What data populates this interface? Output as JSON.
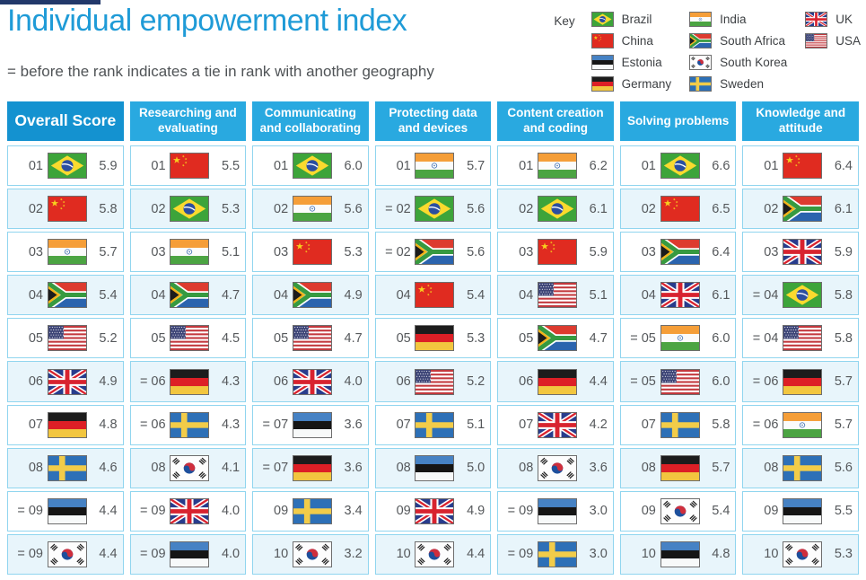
{
  "title": "Individual empowerment index",
  "subtitle": "= before the rank indicates a tie in rank with another geography",
  "colors": {
    "title_blue": "#1f9bd7",
    "header_blue": "#29a9e0",
    "overall_header_blue": "#1492d0",
    "row_alt": "#e8f5fb",
    "column_border": "#90d5ef",
    "text_gray": "#55585b"
  },
  "key": {
    "label": "Key",
    "columns": [
      [
        {
          "name": "Brazil",
          "flag": "brazil"
        },
        {
          "name": "China",
          "flag": "china"
        },
        {
          "name": "Estonia",
          "flag": "estonia"
        },
        {
          "name": "Germany",
          "flag": "germany"
        }
      ],
      [
        {
          "name": "India",
          "flag": "india"
        },
        {
          "name": "South Africa",
          "flag": "south-africa"
        },
        {
          "name": "South Korea",
          "flag": "south-korea"
        },
        {
          "name": "Sweden",
          "flag": "sweden"
        }
      ],
      [
        {
          "name": "UK",
          "flag": "uk"
        },
        {
          "name": "USA",
          "flag": "usa"
        }
      ]
    ]
  },
  "chart_data": {
    "type": "table",
    "title": "Individual empowerment index",
    "note": "= before the rank indicates a tie in rank with another geography",
    "columns": [
      {
        "header": "Overall Score",
        "rows": [
          {
            "rank": "01",
            "country": "Brazil",
            "flag": "brazil",
            "score": "5.9"
          },
          {
            "rank": "02",
            "country": "China",
            "flag": "china",
            "score": "5.8"
          },
          {
            "rank": "03",
            "country": "India",
            "flag": "india",
            "score": "5.7"
          },
          {
            "rank": "04",
            "country": "South Africa",
            "flag": "south-africa",
            "score": "5.4"
          },
          {
            "rank": "05",
            "country": "USA",
            "flag": "usa",
            "score": "5.2"
          },
          {
            "rank": "06",
            "country": "UK",
            "flag": "uk",
            "score": "4.9"
          },
          {
            "rank": "07",
            "country": "Germany",
            "flag": "germany",
            "score": "4.8"
          },
          {
            "rank": "08",
            "country": "Sweden",
            "flag": "sweden",
            "score": "4.6"
          },
          {
            "rank": "= 09",
            "country": "Estonia",
            "flag": "estonia",
            "score": "4.4"
          },
          {
            "rank": "= 09",
            "country": "South Korea",
            "flag": "south-korea",
            "score": "4.4"
          }
        ]
      },
      {
        "header": "Researching and evaluating",
        "rows": [
          {
            "rank": "01",
            "country": "China",
            "flag": "china",
            "score": "5.5"
          },
          {
            "rank": "02",
            "country": "Brazil",
            "flag": "brazil",
            "score": "5.3"
          },
          {
            "rank": "03",
            "country": "India",
            "flag": "india",
            "score": "5.1"
          },
          {
            "rank": "04",
            "country": "South Africa",
            "flag": "south-africa",
            "score": "4.7"
          },
          {
            "rank": "05",
            "country": "USA",
            "flag": "usa",
            "score": "4.5"
          },
          {
            "rank": "= 06",
            "country": "Germany",
            "flag": "germany",
            "score": "4.3"
          },
          {
            "rank": "= 06",
            "country": "Sweden",
            "flag": "sweden",
            "score": "4.3"
          },
          {
            "rank": "08",
            "country": "South Korea",
            "flag": "south-korea",
            "score": "4.1"
          },
          {
            "rank": "= 09",
            "country": "UK",
            "flag": "uk",
            "score": "4.0"
          },
          {
            "rank": "= 09",
            "country": "Estonia",
            "flag": "estonia",
            "score": "4.0"
          }
        ]
      },
      {
        "header": "Communicating and collaborating",
        "rows": [
          {
            "rank": "01",
            "country": "Brazil",
            "flag": "brazil",
            "score": "6.0"
          },
          {
            "rank": "02",
            "country": "India",
            "flag": "india",
            "score": "5.6"
          },
          {
            "rank": "03",
            "country": "China",
            "flag": "china",
            "score": "5.3"
          },
          {
            "rank": "04",
            "country": "South Africa",
            "flag": "south-africa",
            "score": "4.9"
          },
          {
            "rank": "05",
            "country": "USA",
            "flag": "usa",
            "score": "4.7"
          },
          {
            "rank": "06",
            "country": "UK",
            "flag": "uk",
            "score": "4.0"
          },
          {
            "rank": "= 07",
            "country": "Estonia",
            "flag": "estonia",
            "score": "3.6"
          },
          {
            "rank": "= 07",
            "country": "Germany",
            "flag": "germany",
            "score": "3.6"
          },
          {
            "rank": "09",
            "country": "Sweden",
            "flag": "sweden",
            "score": "3.4"
          },
          {
            "rank": "10",
            "country": "South Korea",
            "flag": "south-korea",
            "score": "3.2"
          }
        ]
      },
      {
        "header": "Protecting data and devices",
        "rows": [
          {
            "rank": "01",
            "country": "India",
            "flag": "india",
            "score": "5.7"
          },
          {
            "rank": "= 02",
            "country": "Brazil",
            "flag": "brazil",
            "score": "5.6"
          },
          {
            "rank": "= 02",
            "country": "South Africa",
            "flag": "south-africa",
            "score": "5.6"
          },
          {
            "rank": "04",
            "country": "China",
            "flag": "china",
            "score": "5.4"
          },
          {
            "rank": "05",
            "country": "Germany",
            "flag": "germany",
            "score": "5.3"
          },
          {
            "rank": "06",
            "country": "USA",
            "flag": "usa",
            "score": "5.2"
          },
          {
            "rank": "07",
            "country": "Sweden",
            "flag": "sweden",
            "score": "5.1"
          },
          {
            "rank": "08",
            "country": "Estonia",
            "flag": "estonia",
            "score": "5.0"
          },
          {
            "rank": "09",
            "country": "UK",
            "flag": "uk",
            "score": "4.9"
          },
          {
            "rank": "10",
            "country": "South Korea",
            "flag": "south-korea",
            "score": "4.4"
          }
        ]
      },
      {
        "header": "Content creation and coding",
        "rows": [
          {
            "rank": "01",
            "country": "India",
            "flag": "india",
            "score": "6.2"
          },
          {
            "rank": "02",
            "country": "Brazil",
            "flag": "brazil",
            "score": "6.1"
          },
          {
            "rank": "03",
            "country": "China",
            "flag": "china",
            "score": "5.9"
          },
          {
            "rank": "04",
            "country": "USA",
            "flag": "usa",
            "score": "5.1"
          },
          {
            "rank": "05",
            "country": "South Africa",
            "flag": "south-africa",
            "score": "4.7"
          },
          {
            "rank": "06",
            "country": "Germany",
            "flag": "germany",
            "score": "4.4"
          },
          {
            "rank": "07",
            "country": "UK",
            "flag": "uk",
            "score": "4.2"
          },
          {
            "rank": "08",
            "country": "South Korea",
            "flag": "south-korea",
            "score": "3.6"
          },
          {
            "rank": "= 09",
            "country": "Estonia",
            "flag": "estonia",
            "score": "3.0"
          },
          {
            "rank": "= 09",
            "country": "Sweden",
            "flag": "sweden",
            "score": "3.0"
          }
        ]
      },
      {
        "header": "Solving problems",
        "rows": [
          {
            "rank": "01",
            "country": "Brazil",
            "flag": "brazil",
            "score": "6.6"
          },
          {
            "rank": "02",
            "country": "China",
            "flag": "china",
            "score": "6.5"
          },
          {
            "rank": "03",
            "country": "South Africa",
            "flag": "south-africa",
            "score": "6.4"
          },
          {
            "rank": "04",
            "country": "UK",
            "flag": "uk",
            "score": "6.1"
          },
          {
            "rank": "= 05",
            "country": "India",
            "flag": "india",
            "score": "6.0"
          },
          {
            "rank": "= 05",
            "country": "USA",
            "flag": "usa",
            "score": "6.0"
          },
          {
            "rank": "07",
            "country": "Sweden",
            "flag": "sweden",
            "score": "5.8"
          },
          {
            "rank": "08",
            "country": "Germany",
            "flag": "germany",
            "score": "5.7"
          },
          {
            "rank": "09",
            "country": "South Korea",
            "flag": "south-korea",
            "score": "5.4"
          },
          {
            "rank": "10",
            "country": "Estonia",
            "flag": "estonia",
            "score": "4.8"
          }
        ]
      },
      {
        "header": "Knowledge and attitude",
        "rows": [
          {
            "rank": "01",
            "country": "China",
            "flag": "china",
            "score": "6.4"
          },
          {
            "rank": "02",
            "country": "South Africa",
            "flag": "south-africa",
            "score": "6.1"
          },
          {
            "rank": "03",
            "country": "UK",
            "flag": "uk",
            "score": "5.9"
          },
          {
            "rank": "= 04",
            "country": "Brazil",
            "flag": "brazil",
            "score": "5.8"
          },
          {
            "rank": "= 04",
            "country": "USA",
            "flag": "usa",
            "score": "5.8"
          },
          {
            "rank": "= 06",
            "country": "Germany",
            "flag": "germany",
            "score": "5.7"
          },
          {
            "rank": "= 06",
            "country": "India",
            "flag": "india",
            "score": "5.7"
          },
          {
            "rank": "08",
            "country": "Sweden",
            "flag": "sweden",
            "score": "5.6"
          },
          {
            "rank": "09",
            "country": "Estonia",
            "flag": "estonia",
            "score": "5.5"
          },
          {
            "rank": "10",
            "country": "South Korea",
            "flag": "south-korea",
            "score": "5.3"
          }
        ]
      }
    ]
  }
}
